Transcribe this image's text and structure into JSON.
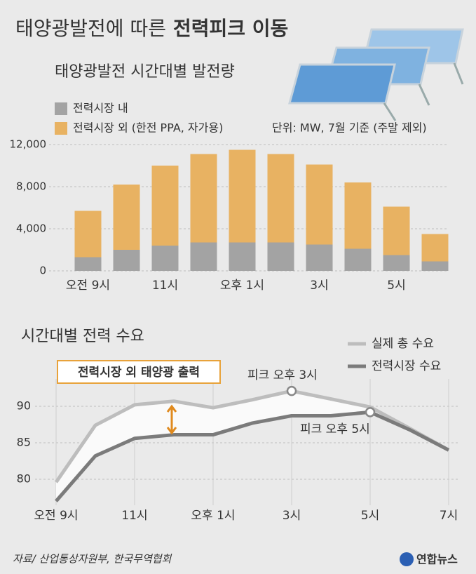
{
  "header": {
    "title_plain": "태양광발전에 따른",
    "title_bold": "전력피크 이동"
  },
  "chart_data": [
    {
      "type": "stacked-bar",
      "title": "태양광발전 시간대별 발전량",
      "unit_note": "단위: MW, 7월 기준 (주말 제외)",
      "categories": [
        "오전 9시",
        null,
        "11시",
        null,
        "오후 1시",
        null,
        "3시",
        null,
        "5시",
        null
      ],
      "series": [
        {
          "name": "전력시장 내",
          "color": "#a3a3a3",
          "values": [
            1300,
            2000,
            2400,
            2700,
            2700,
            2700,
            2500,
            2100,
            1500,
            900
          ]
        },
        {
          "name": "전력시장 외 (한전 PPA, 자가용)",
          "color": "#e8b262",
          "values": [
            4400,
            6200,
            7600,
            8400,
            8800,
            8400,
            7600,
            6300,
            4600,
            2600
          ]
        }
      ],
      "ylim": [
        0,
        12000
      ],
      "yticks": [
        0,
        {
          "value": 4000,
          "label": "4,000"
        },
        {
          "value": 8000,
          "label": "8,000"
        },
        {
          "value": 12000,
          "label": "12,000"
        }
      ],
      "grid": true
    },
    {
      "type": "line",
      "title": "시간대별 전력 수요",
      "x": [
        9,
        10,
        11,
        12,
        13,
        14,
        15,
        16,
        17,
        18,
        19
      ],
      "series": [
        {
          "name": "실제 총 수요",
          "color": "#bdbdbd",
          "values": [
            79.6,
            87.4,
            90.2,
            90.7,
            89.8,
            90.9,
            92.1,
            91.0,
            89.9,
            87.0,
            84.0
          ]
        },
        {
          "name": "전력시장 수요",
          "color": "#7b7b7b",
          "values": [
            77.0,
            83.2,
            85.6,
            86.1,
            86.1,
            87.7,
            88.7,
            88.7,
            89.2,
            86.8,
            84.0
          ]
        }
      ],
      "xlim": [
        9,
        19
      ],
      "xticks": [
        {
          "value": 9,
          "label": "오전 9시"
        },
        {
          "value": 11,
          "label": "11시"
        },
        {
          "value": 13,
          "label": "오후 1시"
        },
        {
          "value": 15,
          "label": "3시"
        },
        {
          "value": 17,
          "label": "5시"
        },
        {
          "value": 19,
          "label": "7시"
        }
      ],
      "ylim": [
        76,
        94
      ],
      "yticks": [
        80,
        85,
        90
      ],
      "grid": true,
      "annotations": [
        {
          "text": "피크 오후 3시"
        },
        {
          "text": "피크 오후 5시"
        },
        {
          "text": "전력시장 외 태양광 출력"
        }
      ]
    }
  ],
  "footer": {
    "source": "자료/ 산업통상자원부, 한국무역협회",
    "logo": "연합뉴스"
  }
}
